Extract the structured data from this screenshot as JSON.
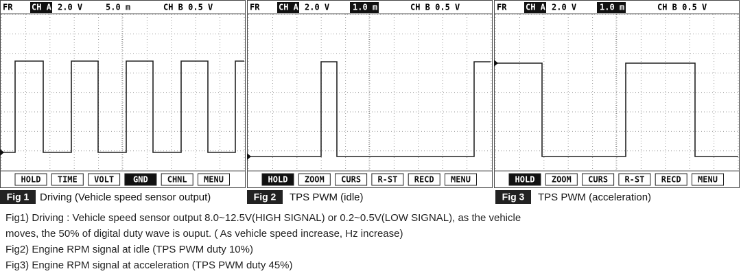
{
  "panels": [
    {
      "header": {
        "mode": "FR",
        "channel_a": "CH A",
        "volts": "2.0 V",
        "time": "5.0 m",
        "channel_b": "CH B 0.5 V"
      },
      "buttons": [
        "HOLD",
        "TIME",
        "VOLT",
        "GND",
        "CHNL",
        "MENU"
      ],
      "figure": {
        "label": "Fig 1",
        "caption": "Driving (Vehicle speed sensor output)"
      }
    },
    {
      "header": {
        "mode": "FR",
        "channel_a": "CH A",
        "volts": "2.0 V",
        "time": "1.0 m",
        "channel_b": "CH B 0.5 V"
      },
      "buttons": [
        "HOLD",
        "ZOOM",
        "CURS",
        "R-ST",
        "RECD",
        "MENU"
      ],
      "figure": {
        "label": "Fig 2",
        "caption": "TPS PWM (idle)"
      }
    },
    {
      "header": {
        "mode": "FR",
        "channel_a": "CH A",
        "volts": "2.0 V",
        "time": "1.0 m",
        "channel_b": "CH B 0.5 V"
      },
      "buttons": [
        "HOLD",
        "ZOOM",
        "CURS",
        "R-ST",
        "RECD",
        "MENU"
      ],
      "figure": {
        "label": "Fig 3",
        "caption": "TPS PWM (acceleration)"
      }
    }
  ],
  "notes": [
    "Fig1) Driving : Vehicle speed sensor output 8.0~12.5V(HIGH SIGNAL) or 0.2~0.5V(LOW SIGNAL), as the vehicle",
    "moves, the 50% of digital duty wave is ouput. ( As vehicle speed increase, Hz increase)",
    "Fig2) Engine RPM signal at idle (TPS PWM duty 10%)",
    "Fig3) Engine RPM signal at acceleration (TPS PWM duty 45%)"
  ]
}
